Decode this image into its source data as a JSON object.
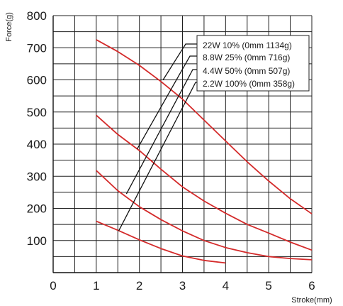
{
  "chart_data": {
    "type": "line",
    "title": "",
    "xlabel": "Stroke(mm)",
    "ylabel": "Force(g)",
    "xlim": [
      0,
      6
    ],
    "ylim": [
      0,
      800
    ],
    "x_ticks": [
      0,
      1,
      2,
      3,
      4,
      5,
      6
    ],
    "x_tick_labels": [
      "0",
      "1",
      "2",
      "3",
      "4",
      "5",
      "6"
    ],
    "y_ticks": [
      100,
      200,
      300,
      400,
      500,
      600,
      700,
      800
    ],
    "y_tick_labels": [
      "100",
      "200",
      "300",
      "400",
      "500",
      "600",
      "700",
      "800"
    ],
    "grid": true,
    "legend_position": "top-right",
    "series_color": "#d42a2a",
    "leader_color": "#111111",
    "series": [
      {
        "name": "22W 10% (0mm 1134g)",
        "x": [
          1,
          1.5,
          2,
          2.5,
          3,
          3.5,
          4,
          4.5,
          5,
          5.5,
          6
        ],
        "y": [
          725,
          688,
          645,
          595,
          540,
          475,
          410,
          345,
          285,
          230,
          183
        ],
        "leader_from": [
          2.55,
          600
        ]
      },
      {
        "name": "8.8W 25% (0mm 716g)",
        "x": [
          1,
          1.5,
          2,
          2.5,
          3,
          3.5,
          4,
          4.5,
          5,
          5.5,
          6
        ],
        "y": [
          490,
          430,
          380,
          322,
          267,
          223,
          185,
          150,
          123,
          95,
          70
        ],
        "leader_from": [
          1.95,
          385
        ]
      },
      {
        "name": "4.4W 50% (0mm 507g)",
        "x": [
          1,
          1.5,
          2,
          2.5,
          3,
          3.5,
          4,
          4.5,
          5,
          5.5,
          6
        ],
        "y": [
          318,
          255,
          205,
          165,
          130,
          100,
          78,
          62,
          50,
          44,
          40
        ],
        "leader_from": [
          1.7,
          245
        ]
      },
      {
        "name": "2.2W 100% (0mm 358g)",
        "x": [
          1,
          1.5,
          2,
          2.5,
          3,
          3.5,
          4
        ],
        "y": [
          160,
          132,
          102,
          75,
          52,
          38,
          30
        ],
        "leader_from": [
          1.52,
          130
        ]
      }
    ]
  }
}
